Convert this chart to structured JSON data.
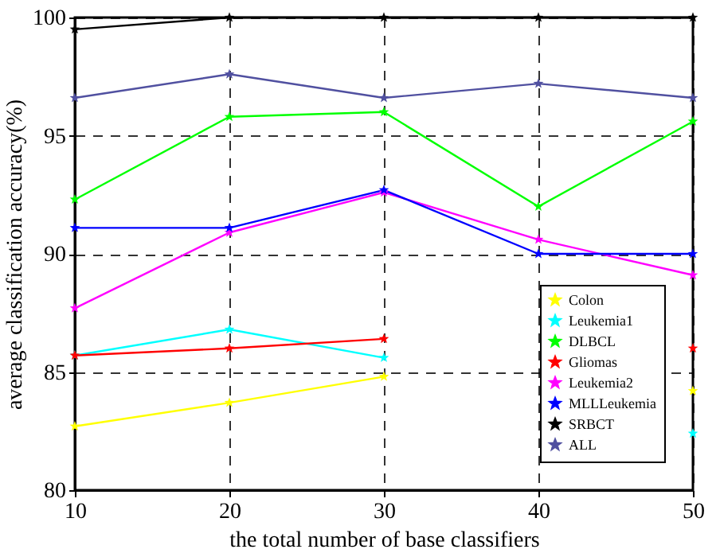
{
  "chart_data": {
    "type": "line",
    "xlabel": "the total number of base classifiers",
    "ylabel": "average classification accuracy(%)",
    "x": [
      10,
      20,
      30,
      40,
      50
    ],
    "series": [
      {
        "name": "Colon",
        "color": "#ffff00",
        "values": [
          82.7,
          83.7,
          84.8,
          null,
          84.2
        ]
      },
      {
        "name": "Leukemia1",
        "color": "#00ffff",
        "values": [
          85.7,
          86.8,
          85.6,
          null,
          82.4
        ]
      },
      {
        "name": "DLBCL",
        "color": "#00ff00",
        "values": [
          92.3,
          95.8,
          96.0,
          92.0,
          95.6
        ]
      },
      {
        "name": "Gliomas",
        "color": "#ff0000",
        "values": [
          85.7,
          86.0,
          86.4,
          null,
          86.0
        ]
      },
      {
        "name": "Leukemia2",
        "color": "#ff00ff",
        "values": [
          87.7,
          90.9,
          92.6,
          90.6,
          89.1
        ]
      },
      {
        "name": "MLLLeukemia",
        "color": "#0000ff",
        "values": [
          91.1,
          91.1,
          92.7,
          90.0,
          90.0
        ]
      },
      {
        "name": "SRBCT",
        "color": "#000000",
        "values": [
          99.5,
          100,
          100,
          100,
          100
        ]
      },
      {
        "name": "ALL",
        "color": "#5050a0",
        "values": [
          96.6,
          97.6,
          96.6,
          97.2,
          96.6
        ]
      }
    ],
    "xlim": [
      10,
      50
    ],
    "xticks": [
      10,
      20,
      30,
      40,
      50
    ],
    "ylim": [
      80,
      100
    ],
    "yticks": [
      80,
      85,
      90,
      95,
      100
    ],
    "grid": true,
    "legend": "bottom right",
    "marker": "star",
    "line_style": "solid"
  }
}
